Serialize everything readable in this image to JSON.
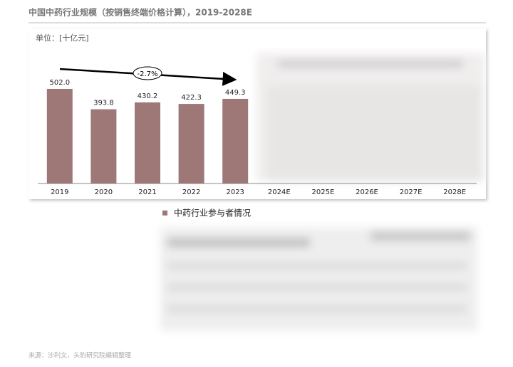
{
  "chart_data": {
    "type": "bar",
    "title": "中国中药行业规模（按销售终端价格计算），2019-2028E",
    "unit_label": "单位：[十亿元]",
    "categories": [
      "2019",
      "2020",
      "2021",
      "2022",
      "2023",
      "2024E",
      "2025E",
      "2026E",
      "2027E",
      "2028E"
    ],
    "values": [
      502.0,
      393.8,
      430.2,
      422.3,
      449.3,
      null,
      null,
      null,
      null,
      null
    ],
    "value_labels": [
      "502.0",
      "393.8",
      "430.2",
      "422.3",
      "449.3",
      null,
      null,
      null,
      null,
      null
    ],
    "color": "#9e7777",
    "ylim": [
      0,
      600
    ],
    "annotation": "-2.7%",
    "section_label": "中药行业参与者情况",
    "source": "来源：沙利文，头豹研究院编辑整理"
  }
}
